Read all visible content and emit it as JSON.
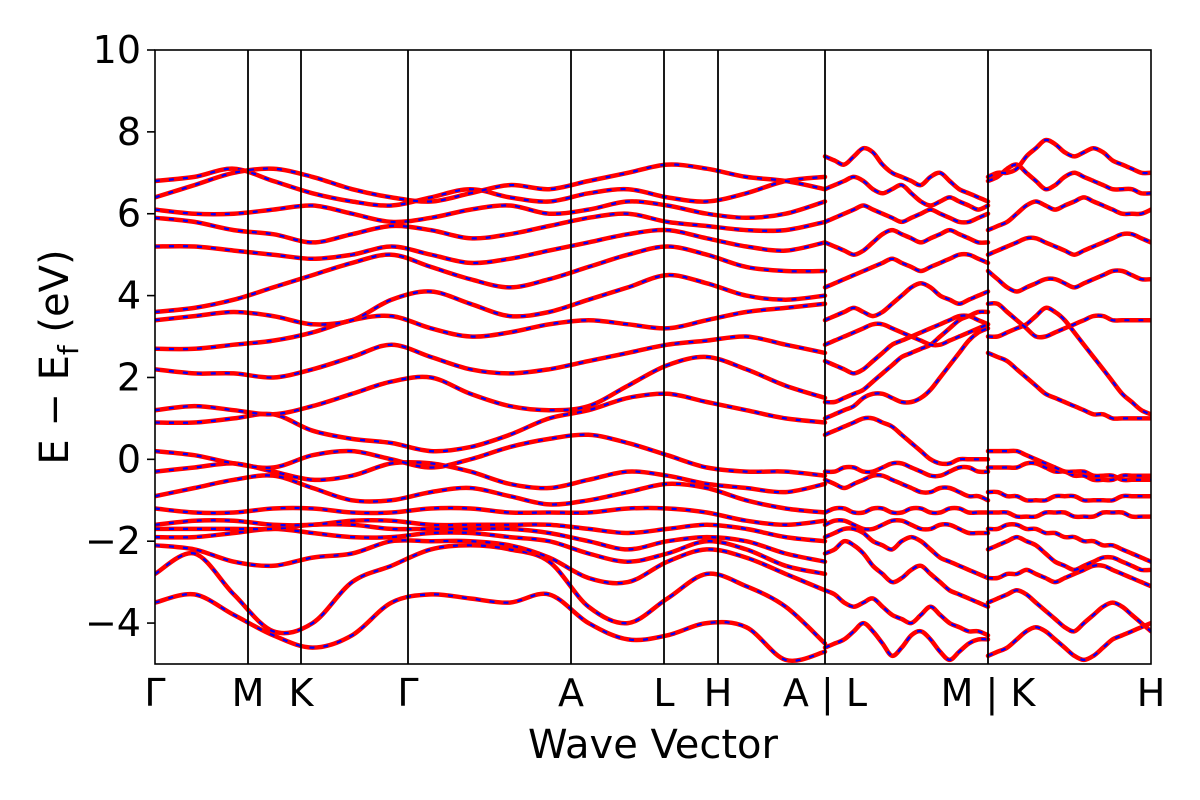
{
  "chart_data": {
    "type": "line",
    "title": "",
    "xlabel": "Wave Vector",
    "ylabel": "E − E_f (eV)",
    "ylabel_parts": {
      "main": "E − E",
      "sub": "f",
      "unit": " (eV)"
    },
    "ylim": [
      -5,
      10
    ],
    "yticks": [
      10,
      8,
      6,
      4,
      2,
      0,
      -2,
      -4
    ],
    "grid": false,
    "legend": "none",
    "colors": {
      "spin_up": "#ff0000",
      "spin_down": "#0000ff",
      "axes": "#000000"
    },
    "kpath": {
      "segments": [
        {
          "labels": [
            "Γ",
            "M",
            "K",
            "Γ",
            "A",
            "L",
            "H",
            "A"
          ],
          "positions": [
            0.0,
            0.93,
            1.46,
            2.53,
            4.16,
            5.09,
            5.63,
            6.7
          ]
        },
        {
          "labels": [
            "L",
            "M"
          ],
          "positions": [
            6.7,
            8.33
          ]
        },
        {
          "labels": [
            "K",
            "H"
          ],
          "positions": [
            8.33,
            9.96
          ]
        }
      ],
      "tick_labels": [
        {
          "text": "Γ",
          "x": 0.0
        },
        {
          "text": "M",
          "x": 0.93
        },
        {
          "text": "K",
          "x": 1.46
        },
        {
          "text": "Γ",
          "x": 2.53
        },
        {
          "text": "A",
          "x": 4.16
        },
        {
          "text": "L",
          "x": 5.09
        },
        {
          "text": "H",
          "x": 5.63
        },
        {
          "text": "A | L",
          "x": 6.7
        },
        {
          "text": "M | K",
          "x": 8.33
        },
        {
          "text": "H",
          "x": 9.96
        }
      ],
      "xlim": [
        0.0,
        9.96
      ]
    },
    "segment_bands": [
      [
        [
          -3.5,
          -3.3,
          -3.8,
          -4.3,
          -4.6,
          -4.3,
          -3.5,
          -3.3,
          -3.4,
          -3.5,
          -3.3,
          -4.0,
          -4.4,
          -4.3,
          -4.0,
          -4.1,
          -4.9,
          -4.7
        ],
        [
          -2.8,
          -2.3,
          -3.3,
          -4.2,
          -4.0,
          -3.0,
          -2.6,
          -2.2,
          -2.1,
          -2.2,
          -2.5,
          -3.6,
          -4.0,
          -3.4,
          -2.8,
          -3.1,
          -3.6,
          -4.5
        ],
        [
          -2.1,
          -2.2,
          -2.5,
          -2.6,
          -2.4,
          -2.3,
          -2.0,
          -2.0,
          -2.0,
          -2.1,
          -2.4,
          -2.9,
          -3.0,
          -2.5,
          -2.2,
          -2.4,
          -2.8,
          -3.2
        ],
        [
          -1.9,
          -1.9,
          -1.8,
          -1.7,
          -1.8,
          -1.9,
          -1.9,
          -1.8,
          -1.8,
          -1.9,
          -2.0,
          -2.3,
          -2.5,
          -2.3,
          -2.0,
          -2.2,
          -2.6,
          -2.8
        ],
        [
          -1.7,
          -1.7,
          -1.7,
          -1.7,
          -1.6,
          -1.6,
          -1.7,
          -1.7,
          -1.7,
          -1.7,
          -1.8,
          -2.0,
          -2.2,
          -2.0,
          -1.9,
          -2.0,
          -2.3,
          -2.5
        ],
        [
          -1.6,
          -1.5,
          -1.5,
          -1.6,
          -1.6,
          -1.5,
          -1.5,
          -1.6,
          -1.6,
          -1.6,
          -1.6,
          -1.7,
          -1.8,
          -1.7,
          -1.6,
          -1.7,
          -1.9,
          -2.0
        ],
        [
          -1.2,
          -1.3,
          -1.3,
          -1.2,
          -1.2,
          -1.3,
          -1.3,
          -1.2,
          -1.2,
          -1.3,
          -1.3,
          -1.3,
          -1.2,
          -1.2,
          -1.3,
          -1.5,
          -1.6,
          -1.5
        ],
        [
          -0.9,
          -0.7,
          -0.5,
          -0.4,
          -0.7,
          -1.0,
          -1.0,
          -0.8,
          -0.7,
          -0.9,
          -1.1,
          -1.0,
          -0.8,
          -0.6,
          -0.7,
          -1.0,
          -1.2,
          -1.3
        ],
        [
          -0.3,
          -0.2,
          -0.1,
          -0.3,
          -0.5,
          -0.4,
          -0.1,
          -0.1,
          -0.3,
          -0.6,
          -0.7,
          -0.5,
          -0.3,
          -0.4,
          -0.6,
          -0.7,
          -0.8,
          -0.6
        ],
        [
          0.2,
          0.1,
          -0.1,
          -0.2,
          0.1,
          0.2,
          0.0,
          -0.2,
          0.0,
          0.3,
          0.5,
          0.6,
          0.4,
          0.1,
          -0.2,
          -0.3,
          -0.3,
          -0.4
        ],
        [
          0.9,
          0.9,
          1.0,
          1.1,
          0.7,
          0.5,
          0.4,
          0.2,
          0.3,
          0.6,
          1.0,
          1.2,
          1.5,
          1.6,
          1.4,
          1.2,
          1.0,
          0.9
        ],
        [
          1.2,
          1.3,
          1.2,
          1.1,
          1.3,
          1.6,
          1.9,
          2.0,
          1.6,
          1.3,
          1.2,
          1.3,
          1.8,
          2.3,
          2.5,
          2.2,
          1.8,
          1.5
        ],
        [
          2.2,
          2.1,
          2.1,
          2.0,
          2.2,
          2.5,
          2.8,
          2.5,
          2.2,
          2.1,
          2.2,
          2.4,
          2.6,
          2.8,
          2.9,
          3.0,
          2.8,
          2.6
        ],
        [
          2.7,
          2.7,
          2.8,
          2.9,
          3.1,
          3.4,
          3.5,
          3.2,
          3.0,
          3.1,
          3.3,
          3.4,
          3.3,
          3.2,
          3.4,
          3.6,
          3.7,
          3.8
        ],
        [
          3.4,
          3.5,
          3.6,
          3.5,
          3.3,
          3.4,
          3.9,
          4.1,
          3.8,
          3.5,
          3.6,
          3.9,
          4.2,
          4.5,
          4.3,
          4.0,
          3.9,
          4.0
        ],
        [
          3.6,
          3.7,
          3.9,
          4.2,
          4.5,
          4.8,
          5.0,
          4.7,
          4.4,
          4.2,
          4.4,
          4.7,
          5.0,
          5.2,
          5.0,
          4.7,
          4.6,
          4.6
        ],
        [
          5.2,
          5.2,
          5.1,
          5.0,
          4.9,
          5.0,
          5.2,
          5.0,
          4.8,
          4.9,
          5.1,
          5.3,
          5.5,
          5.6,
          5.4,
          5.2,
          5.1,
          5.3
        ],
        [
          5.9,
          5.8,
          5.6,
          5.5,
          5.3,
          5.5,
          5.7,
          5.6,
          5.4,
          5.5,
          5.7,
          5.9,
          6.0,
          5.8,
          5.7,
          5.6,
          5.6,
          5.8
        ],
        [
          6.1,
          6.0,
          6.0,
          6.1,
          6.2,
          6.0,
          5.8,
          5.9,
          6.1,
          6.2,
          6.0,
          6.1,
          6.3,
          6.2,
          6.0,
          5.9,
          6.0,
          6.3
        ],
        [
          6.8,
          6.9,
          7.1,
          6.8,
          6.5,
          6.3,
          6.2,
          6.4,
          6.6,
          6.4,
          6.3,
          6.5,
          6.6,
          6.4,
          6.3,
          6.5,
          6.8,
          6.9
        ],
        [
          6.4,
          6.7,
          7.0,
          7.1,
          6.9,
          6.6,
          6.4,
          6.3,
          6.5,
          6.7,
          6.6,
          6.8,
          7.0,
          7.2,
          7.1,
          6.9,
          6.8,
          6.6
        ]
      ],
      [
        [
          -4.6,
          -4.5,
          -4.4,
          -4.2,
          -4.0,
          -4.2,
          -4.5,
          -4.8,
          -4.6,
          -4.3,
          -4.2,
          -4.4,
          -4.7,
          -4.9,
          -4.7,
          -4.5,
          -4.4,
          -4.4
        ],
        [
          -3.2,
          -3.3,
          -3.5,
          -3.6,
          -3.5,
          -3.4,
          -3.6,
          -3.8,
          -3.9,
          -4.0,
          -3.8,
          -3.6,
          -3.8,
          -4.0,
          -4.1,
          -4.2,
          -4.2,
          -4.3
        ],
        [
          -2.3,
          -2.2,
          -2.0,
          -2.1,
          -2.3,
          -2.6,
          -2.8,
          -3.0,
          -2.9,
          -2.7,
          -2.6,
          -2.8,
          -3.0,
          -3.2,
          -3.3,
          -3.4,
          -3.5,
          -3.6
        ],
        [
          -1.9,
          -1.8,
          -1.7,
          -1.7,
          -1.8,
          -2.0,
          -2.1,
          -2.2,
          -2.0,
          -1.9,
          -2.0,
          -2.2,
          -2.4,
          -2.5,
          -2.6,
          -2.7,
          -2.8,
          -2.9
        ],
        [
          -1.6,
          -1.5,
          -1.5,
          -1.6,
          -1.7,
          -1.7,
          -1.6,
          -1.5,
          -1.5,
          -1.6,
          -1.7,
          -1.7,
          -1.6,
          -1.6,
          -1.7,
          -1.8,
          -1.8,
          -1.8
        ],
        [
          -1.3,
          -1.2,
          -1.2,
          -1.3,
          -1.3,
          -1.2,
          -1.2,
          -1.3,
          -1.3,
          -1.2,
          -1.2,
          -1.3,
          -1.3,
          -1.2,
          -1.2,
          -1.3,
          -1.3,
          -1.3
        ],
        [
          -0.5,
          -0.6,
          -0.7,
          -0.6,
          -0.5,
          -0.4,
          -0.4,
          -0.5,
          -0.6,
          -0.7,
          -0.8,
          -0.8,
          -0.7,
          -0.7,
          -0.8,
          -0.9,
          -0.9,
          -1.0
        ],
        [
          -0.3,
          -0.3,
          -0.2,
          -0.2,
          -0.3,
          -0.3,
          -0.2,
          -0.1,
          -0.1,
          -0.2,
          -0.3,
          -0.4,
          -0.4,
          -0.3,
          -0.2,
          -0.2,
          -0.3,
          -0.3
        ],
        [
          0.6,
          0.7,
          0.8,
          0.9,
          1.0,
          1.0,
          0.9,
          0.8,
          0.6,
          0.4,
          0.2,
          0.0,
          -0.1,
          -0.1,
          0.0,
          0.0,
          0.0,
          0.0
        ],
        [
          1.0,
          1.1,
          1.2,
          1.3,
          1.5,
          1.6,
          1.6,
          1.5,
          1.4,
          1.4,
          1.5,
          1.7,
          2.0,
          2.3,
          2.6,
          2.9,
          3.1,
          3.2
        ],
        [
          1.4,
          1.4,
          1.5,
          1.6,
          1.7,
          1.9,
          2.1,
          2.3,
          2.5,
          2.6,
          2.7,
          2.8,
          3.0,
          3.2,
          3.4,
          3.5,
          3.6,
          3.6
        ],
        [
          2.4,
          2.3,
          2.2,
          2.1,
          2.2,
          2.4,
          2.6,
          2.8,
          2.9,
          3.0,
          3.1,
          3.2,
          3.3,
          3.4,
          3.5,
          3.5,
          3.4,
          3.3
        ],
        [
          2.8,
          2.9,
          3.0,
          3.1,
          3.2,
          3.3,
          3.3,
          3.2,
          3.1,
          3.0,
          2.9,
          2.8,
          2.8,
          2.9,
          3.0,
          3.1,
          3.2,
          3.3
        ],
        [
          3.4,
          3.5,
          3.6,
          3.7,
          3.6,
          3.5,
          3.6,
          3.8,
          4.0,
          4.2,
          4.3,
          4.2,
          4.0,
          3.9,
          3.8,
          3.9,
          4.0,
          4.1
        ],
        [
          4.2,
          4.3,
          4.4,
          4.5,
          4.6,
          4.7,
          4.8,
          4.9,
          4.8,
          4.7,
          4.6,
          4.7,
          4.8,
          4.9,
          5.0,
          5.0,
          4.9,
          4.8
        ],
        [
          5.3,
          5.2,
          5.1,
          5.0,
          5.1,
          5.3,
          5.5,
          5.6,
          5.5,
          5.4,
          5.3,
          5.4,
          5.5,
          5.6,
          5.5,
          5.4,
          5.3,
          5.3
        ],
        [
          5.8,
          5.9,
          6.0,
          6.1,
          6.2,
          6.1,
          6.0,
          5.9,
          5.8,
          5.9,
          6.0,
          6.1,
          6.0,
          5.9,
          5.8,
          5.8,
          5.9,
          6.0
        ],
        [
          6.6,
          6.7,
          6.8,
          6.9,
          6.8,
          6.6,
          6.5,
          6.6,
          6.7,
          6.5,
          6.3,
          6.2,
          6.3,
          6.4,
          6.3,
          6.2,
          6.1,
          6.2
        ],
        [
          7.4,
          7.3,
          7.2,
          7.4,
          7.6,
          7.5,
          7.2,
          7.0,
          6.9,
          6.8,
          6.7,
          6.9,
          7.0,
          6.8,
          6.6,
          6.5,
          6.4,
          6.3
        ]
      ],
      [
        [
          -4.8,
          -4.7,
          -4.6,
          -4.4,
          -4.2,
          -4.1,
          -4.2,
          -4.4,
          -4.6,
          -4.8,
          -4.9,
          -4.8,
          -4.6,
          -4.4,
          -4.3,
          -4.2,
          -4.1,
          -4.0
        ],
        [
          -3.5,
          -3.4,
          -3.3,
          -3.2,
          -3.3,
          -3.5,
          -3.7,
          -3.9,
          -4.1,
          -4.2,
          -4.0,
          -3.8,
          -3.6,
          -3.5,
          -3.6,
          -3.8,
          -4.0,
          -4.2
        ],
        [
          -2.9,
          -2.9,
          -2.8,
          -2.8,
          -2.7,
          -2.8,
          -2.9,
          -3.0,
          -2.9,
          -2.8,
          -2.7,
          -2.6,
          -2.6,
          -2.7,
          -2.8,
          -2.9,
          -3.0,
          -3.1
        ],
        [
          -2.2,
          -2.1,
          -2.0,
          -1.9,
          -2.0,
          -2.1,
          -2.3,
          -2.5,
          -2.6,
          -2.7,
          -2.6,
          -2.5,
          -2.4,
          -2.4,
          -2.5,
          -2.6,
          -2.7,
          -2.7
        ],
        [
          -1.7,
          -1.7,
          -1.6,
          -1.6,
          -1.7,
          -1.7,
          -1.8,
          -1.8,
          -1.9,
          -1.9,
          -2.0,
          -2.0,
          -2.1,
          -2.1,
          -2.2,
          -2.3,
          -2.4,
          -2.5
        ],
        [
          -1.3,
          -1.3,
          -1.3,
          -1.4,
          -1.4,
          -1.4,
          -1.3,
          -1.3,
          -1.3,
          -1.4,
          -1.4,
          -1.4,
          -1.3,
          -1.3,
          -1.3,
          -1.4,
          -1.4,
          -1.4
        ],
        [
          -0.8,
          -0.8,
          -0.9,
          -0.9,
          -1.0,
          -1.0,
          -1.0,
          -0.9,
          -0.9,
          -0.9,
          -1.0,
          -1.0,
          -1.0,
          -1.0,
          -0.9,
          -0.9,
          -0.9,
          -0.9
        ],
        [
          -0.2,
          -0.2,
          -0.2,
          -0.2,
          -0.1,
          -0.1,
          -0.2,
          -0.3,
          -0.3,
          -0.4,
          -0.4,
          -0.5,
          -0.5,
          -0.5,
          -0.4,
          -0.4,
          -0.4,
          -0.4
        ],
        [
          0.2,
          0.2,
          0.2,
          0.2,
          0.1,
          0.0,
          -0.1,
          -0.2,
          -0.3,
          -0.3,
          -0.3,
          -0.4,
          -0.4,
          -0.4,
          -0.5,
          -0.5,
          -0.5,
          -0.5
        ],
        [
          2.6,
          2.5,
          2.4,
          2.2,
          2.0,
          1.8,
          1.6,
          1.5,
          1.4,
          1.3,
          1.2,
          1.1,
          1.1,
          1.0,
          1.0,
          1.0,
          1.0,
          1.0
        ],
        [
          3.0,
          3.0,
          3.1,
          3.2,
          3.3,
          3.5,
          3.7,
          3.6,
          3.4,
          3.1,
          2.8,
          2.5,
          2.2,
          1.9,
          1.6,
          1.4,
          1.2,
          1.1
        ],
        [
          3.8,
          3.8,
          3.6,
          3.4,
          3.2,
          3.0,
          3.0,
          3.1,
          3.2,
          3.3,
          3.4,
          3.5,
          3.5,
          3.4,
          3.4,
          3.4,
          3.4,
          3.4
        ],
        [
          4.6,
          4.4,
          4.2,
          4.1,
          4.2,
          4.3,
          4.4,
          4.4,
          4.3,
          4.2,
          4.3,
          4.4,
          4.5,
          4.6,
          4.6,
          4.5,
          4.4,
          4.4
        ],
        [
          5.0,
          5.1,
          5.2,
          5.3,
          5.4,
          5.4,
          5.3,
          5.2,
          5.1,
          5.0,
          5.1,
          5.2,
          5.3,
          5.4,
          5.5,
          5.5,
          5.4,
          5.3
        ],
        [
          5.6,
          5.7,
          5.8,
          6.0,
          6.2,
          6.3,
          6.2,
          6.1,
          6.2,
          6.3,
          6.4,
          6.3,
          6.2,
          6.1,
          6.0,
          6.0,
          6.0,
          6.1
        ],
        [
          6.8,
          6.9,
          7.1,
          7.2,
          7.0,
          6.8,
          6.6,
          6.7,
          6.9,
          7.0,
          6.9,
          6.8,
          6.7,
          6.6,
          6.6,
          6.6,
          6.5,
          6.5
        ],
        [
          6.9,
          7.0,
          7.0,
          7.1,
          7.4,
          7.6,
          7.8,
          7.7,
          7.5,
          7.4,
          7.5,
          7.6,
          7.5,
          7.3,
          7.2,
          7.1,
          7.0,
          7.0
        ]
      ]
    ]
  }
}
